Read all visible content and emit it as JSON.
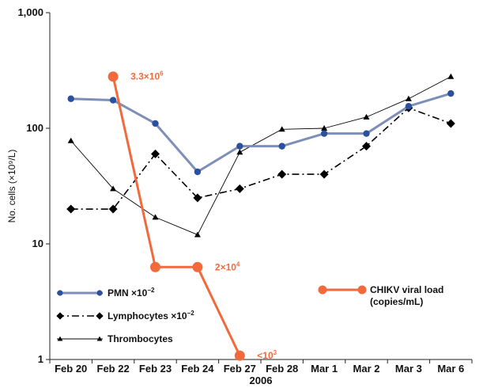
{
  "chart_data": {
    "type": "line",
    "title": "",
    "xlabel": "2006",
    "ylabel": "No. cells (×10⁹/L)",
    "yscale": "log",
    "ylim": [
      1,
      1000
    ],
    "yticks": [
      {
        "value": 1,
        "label": "1"
      },
      {
        "value": 10,
        "label": "10"
      },
      {
        "value": 100,
        "label": "100"
      },
      {
        "value": 1000,
        "label": "1,000"
      }
    ],
    "categories": [
      "Feb 20",
      "Feb 22",
      "Feb 23",
      "Feb 24",
      "Feb 27",
      "Feb 28",
      "Mar 1",
      "Mar 2",
      "Mar 3",
      "Mar 6"
    ],
    "grid": false,
    "series": [
      {
        "name": "PMN ×10⁻²",
        "color": "#2b50a0",
        "line_color": "#7d8fb8",
        "marker": "circle",
        "values": [
          180,
          175,
          110,
          42,
          70,
          70,
          90,
          90,
          155,
          200
        ]
      },
      {
        "name": "Lymphocytes ×10⁻²",
        "color": "#000000",
        "marker": "diamond",
        "dash": "dashdot",
        "values": [
          20,
          20,
          60,
          25,
          30,
          40,
          40,
          70,
          150,
          110
        ]
      },
      {
        "name": "Thrombocytes",
        "color": "#000000",
        "marker": "triangle",
        "values": [
          78,
          30,
          17,
          12,
          62,
          98,
          100,
          125,
          180,
          280
        ]
      },
      {
        "name": "CHIKV viral load",
        "name_line2": "(copies/mL)",
        "color": "#f26a3c",
        "marker": "circle",
        "scale": "viral",
        "values": [
          null,
          280,
          6.3,
          6.3,
          1.08,
          null,
          null,
          null,
          null,
          null
        ]
      }
    ],
    "annotations": [
      {
        "series": 3,
        "index": 1,
        "base": "3.3×10",
        "exp": "6"
      },
      {
        "series": 3,
        "index": 3,
        "base": "2×10",
        "exp": "4"
      },
      {
        "series": 3,
        "index": 4,
        "base": "<10",
        "exp": "3"
      }
    ]
  }
}
